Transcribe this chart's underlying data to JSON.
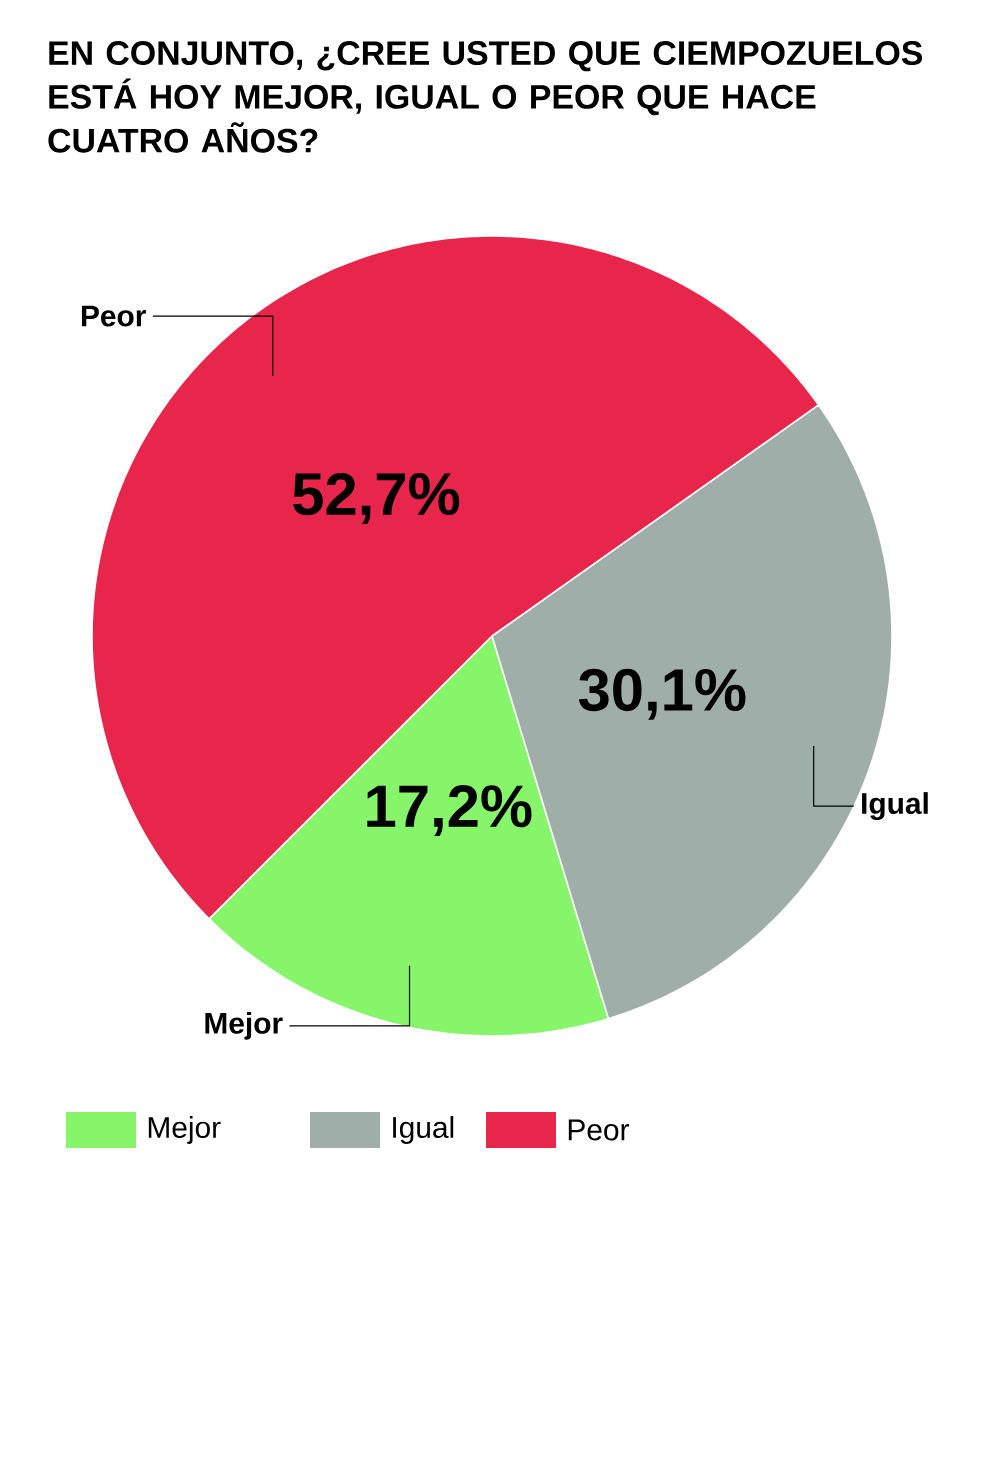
{
  "chart_data": {
    "type": "pie",
    "title": "EN CONJUNTO, ¿CREE USTED QUE CIEMPOZUELOS ESTÁ HOY MEJOR, IGUAL O PEOR QUE HACE CUATRO AÑOS?",
    "categories": [
      "Mejor",
      "Igual",
      "Peor"
    ],
    "values": [
      17.2,
      30.1,
      52.7
    ],
    "colors": [
      "#86f56a",
      "#a0aeaa",
      "#e8254a"
    ],
    "value_labels": [
      "17,2%",
      "30,1%",
      "52,7%"
    ],
    "legend": "bottom"
  }
}
